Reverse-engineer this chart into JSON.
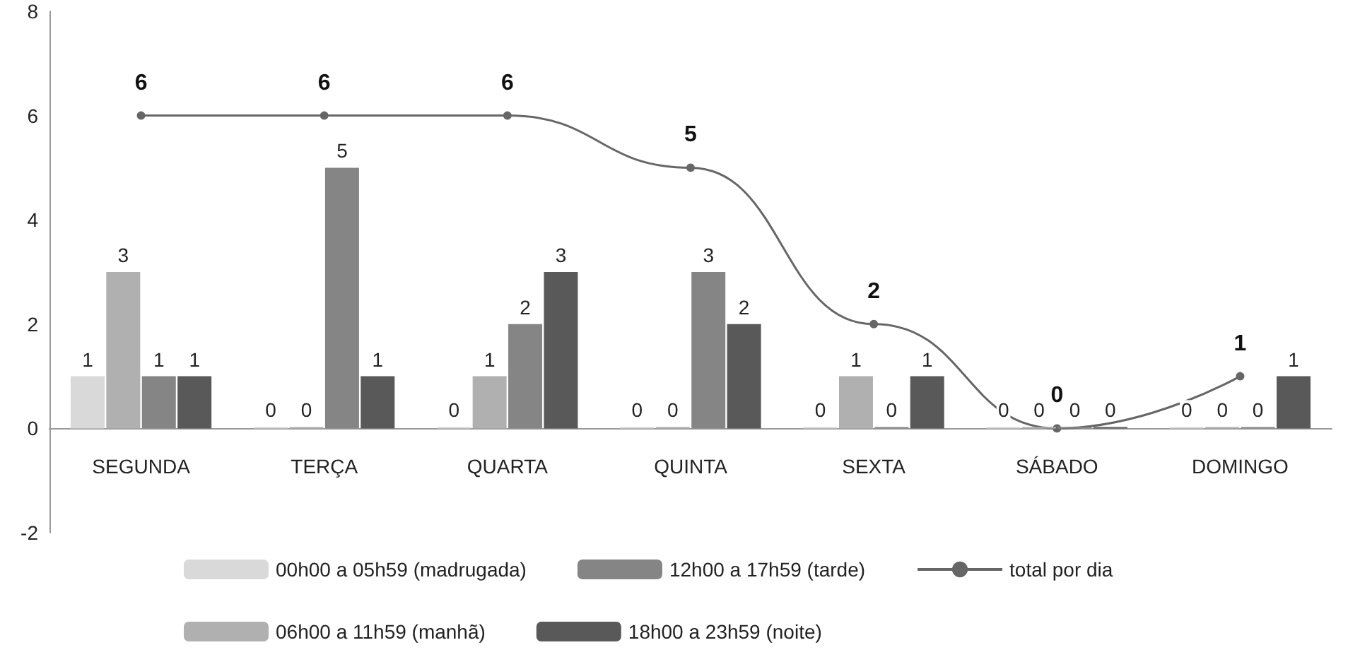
{
  "chart_data": {
    "type": "bar",
    "categories": [
      "SEGUNDA",
      "TERÇA",
      "QUARTA",
      "QUINTA",
      "SEXTA",
      "SÁBADO",
      "DOMINGO"
    ],
    "series": [
      {
        "name": "00h00 a 05h59 (madrugada)",
        "color": "#d9d9d9",
        "values": [
          1,
          0,
          0,
          0,
          0,
          0,
          0
        ]
      },
      {
        "name": "06h00 a 11h59 (manhã)",
        "color": "#b0b0b0",
        "values": [
          3,
          0,
          1,
          0,
          1,
          0,
          0
        ]
      },
      {
        "name": "12h00 a 17h59 (tarde)",
        "color": "#858585",
        "values": [
          1,
          5,
          2,
          3,
          0,
          0,
          0
        ]
      },
      {
        "name": "18h00 a 23h59 (noite)",
        "color": "#595959",
        "values": [
          1,
          1,
          3,
          2,
          1,
          0,
          1
        ]
      },
      {
        "name": "total por dia",
        "type": "line",
        "color": "#666666",
        "values": [
          6,
          6,
          6,
          5,
          2,
          0,
          1
        ]
      }
    ],
    "ylim": [
      -2,
      8
    ],
    "yticks": [
      -2,
      0,
      2,
      4,
      6,
      8
    ],
    "grid": false,
    "legend": "bottom",
    "data_labels": true,
    "marker": "circle",
    "line_style": "solid"
  }
}
